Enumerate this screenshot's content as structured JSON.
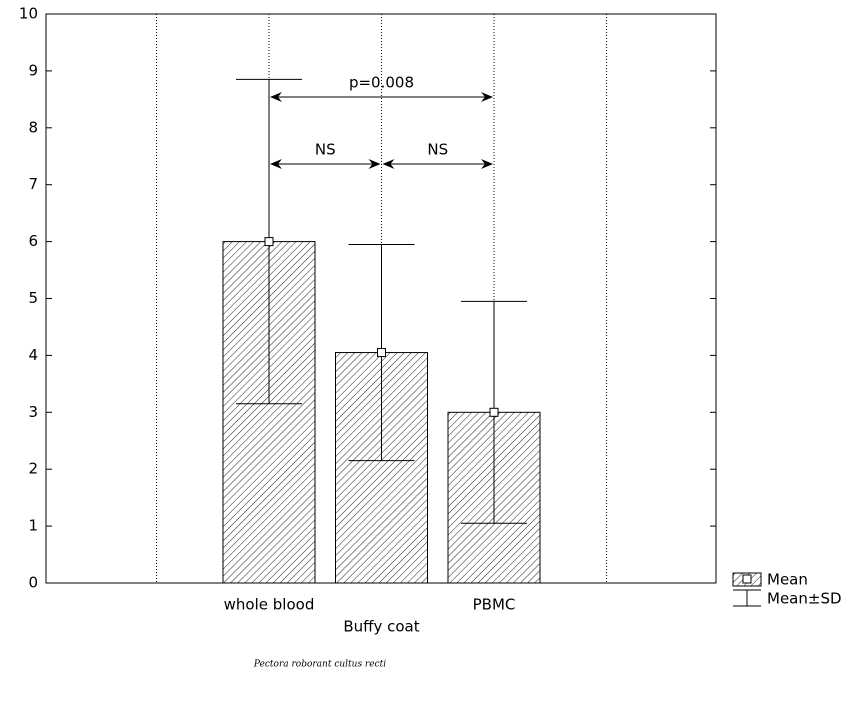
{
  "chart_data": {
    "type": "bar",
    "categories": [
      "whole blood",
      "Buffy coat",
      "PBMC"
    ],
    "series": [
      {
        "name": "Mean",
        "color": "#000000",
        "values": [
          6.0,
          4.05,
          3.0
        ],
        "errors": [
          2.85,
          1.9,
          1.95
        ]
      }
    ],
    "error_name": "Mean±SD",
    "annotations": [
      "p=0.008",
      "NS",
      "NS"
    ],
    "watermark": "Pectora roborant cultus recti",
    "ylim": [
      0,
      10
    ],
    "yticks": [
      0,
      1,
      2,
      3,
      4,
      5,
      6,
      7,
      8,
      9,
      10
    ]
  }
}
